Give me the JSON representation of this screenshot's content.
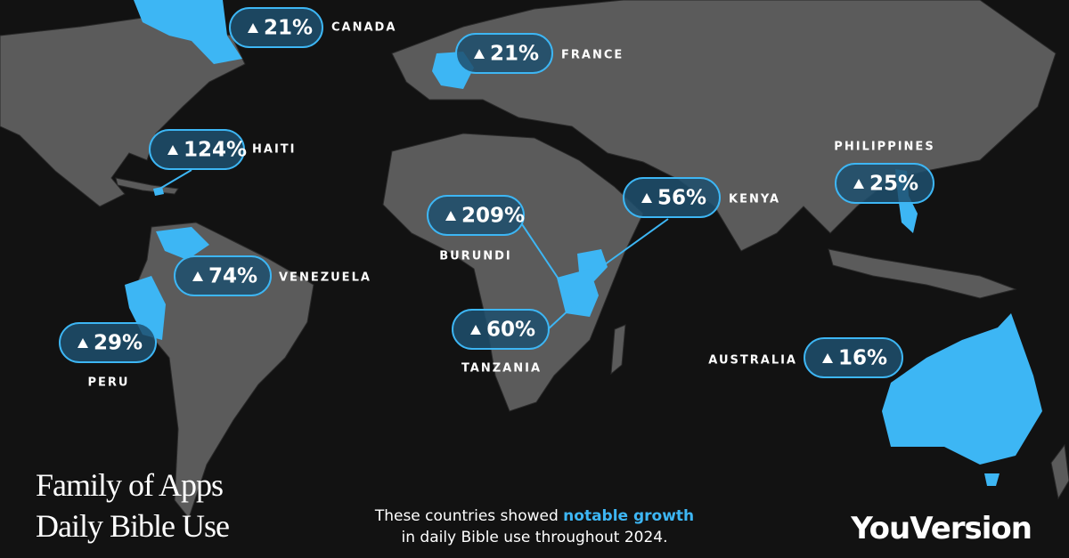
{
  "title": [
    "Family of Apps",
    "Daily Bible Use"
  ],
  "callouts": [
    {
      "country": "CANADA",
      "growth": "21%"
    },
    {
      "country": "FRANCE",
      "growth": "21%"
    },
    {
      "country": "HAITI",
      "growth": "124%"
    },
    {
      "country": "BURUNDI",
      "growth": "209%"
    },
    {
      "country": "KENYA",
      "growth": "56%"
    },
    {
      "country": "PHILIPPINES",
      "growth": "25%"
    },
    {
      "country": "VENEZUELA",
      "growth": "74%"
    },
    {
      "country": "PERU",
      "growth": "29%"
    },
    {
      "country": "TANZANIA",
      "growth": "60%"
    },
    {
      "country": "AUSTRALIA",
      "growth": "16%"
    }
  ],
  "caption": {
    "lead": "These countries showed ",
    "highlight": "notable growth",
    "tail": "in daily Bible use throughout 2024."
  },
  "logo": "YouVersion"
}
